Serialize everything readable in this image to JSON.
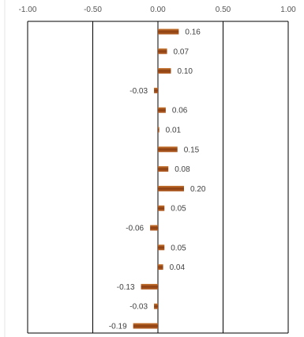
{
  "chart_data": {
    "type": "bar",
    "orientation": "horizontal",
    "xlim": [
      -1.0,
      1.0
    ],
    "x_ticks": [
      "-1.00",
      "-0.50",
      "0.00",
      "0.50",
      "1.00"
    ],
    "x_tick_values": [
      -1.0,
      -0.5,
      0.0,
      0.5,
      1.0
    ],
    "values": [
      0.16,
      0.07,
      0.1,
      -0.03,
      0.06,
      0.01,
      0.15,
      0.08,
      0.2,
      0.05,
      -0.06,
      0.05,
      0.04,
      -0.13,
      -0.03,
      -0.19
    ],
    "value_labels": [
      "0.16",
      "0.07",
      "0.10",
      "-0.03",
      "0.06",
      "0.01",
      "0.15",
      "0.08",
      "0.20",
      "0.05",
      "-0.06",
      "0.05",
      "0.04",
      "-0.13",
      "-0.03",
      "-0.19"
    ],
    "axis_position": "top",
    "vertical_gridlines": true,
    "bar_color": "#8B4513",
    "bar_color_light": "#C06A2A",
    "gridline_color": "#000000"
  }
}
